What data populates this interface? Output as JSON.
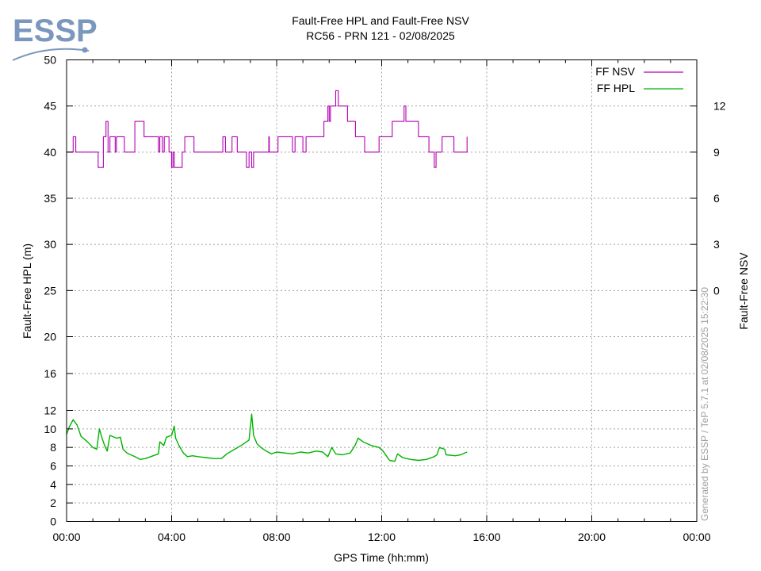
{
  "logo": {
    "text": "ESSP",
    "color": "#7b97bd"
  },
  "colors": {
    "nsv": "#b300b3",
    "hpl": "#00b300",
    "grid": "#a0a0a0",
    "watermark": "#a0a0a0"
  },
  "watermark": "Generated by ESSP / TeP 5.7.1 at 02/08/2025 15:22:30",
  "chart_data": {
    "type": "line",
    "title": "Fault-Free HPL and Fault-Free NSV",
    "subtitle": "RC56 - PRN 121 - 02/08/2025",
    "xlabel": "GPS Time (hh:mm)",
    "ylabel": "Fault-Free HPL (m)",
    "y2label": "Fault-Free NSV",
    "xlim": [
      0,
      24
    ],
    "x_ticks": [
      "00:00",
      "04:00",
      "08:00",
      "12:00",
      "16:00",
      "20:00",
      "00:00"
    ],
    "y_axis_scale": "piecewise",
    "y_ticks": [
      0,
      2,
      4,
      6,
      8,
      10,
      12,
      16,
      20,
      25,
      30,
      35,
      40,
      45,
      50
    ],
    "y2_ticks": [
      0,
      3,
      6,
      9,
      12
    ],
    "y2_map": {
      "nsv_0_at_hpl": 25,
      "hpl_per_nsv": 1.6667
    },
    "grid": true,
    "legend_position": "top-right",
    "series": [
      {
        "name": "FF NSV",
        "axis": "right",
        "step": true,
        "points": [
          [
            0,
            9
          ],
          [
            0.25,
            10
          ],
          [
            0.35,
            9
          ],
          [
            1.2,
            8
          ],
          [
            1.4,
            10
          ],
          [
            1.5,
            11
          ],
          [
            1.58,
            9
          ],
          [
            1.65,
            10
          ],
          [
            1.85,
            9
          ],
          [
            1.9,
            10
          ],
          [
            2.05,
            10
          ],
          [
            2.2,
            9
          ],
          [
            2.6,
            10
          ],
          [
            2.6,
            9
          ],
          [
            2.6,
            10
          ],
          [
            2.6,
            10
          ],
          [
            2.6,
            10
          ],
          [
            2.6,
            10
          ],
          [
            2.6,
            10
          ],
          [
            2.6,
            10
          ],
          [
            2.6,
            10
          ],
          [
            2.6,
            10
          ],
          [
            2.6,
            10
          ],
          [
            2.6,
            10
          ],
          [
            2.6,
            10
          ],
          [
            2.6,
            10
          ],
          [
            2.6,
            10
          ],
          [
            2.6,
            10
          ],
          [
            2.6,
            10
          ],
          [
            2.6,
            11
          ],
          [
            2.95,
            10
          ],
          [
            3.5,
            9
          ],
          [
            3.55,
            10
          ],
          [
            3.65,
            9
          ],
          [
            3.72,
            10
          ],
          [
            3.75,
            10
          ],
          [
            3.8,
            10
          ],
          [
            3.85,
            10
          ],
          [
            3.9,
            9
          ],
          [
            4.0,
            8
          ],
          [
            4.05,
            9
          ],
          [
            4.1,
            8
          ],
          [
            4.4,
            9
          ],
          [
            4.5,
            10
          ],
          [
            4.85,
            9
          ],
          [
            5.95,
            10
          ],
          [
            6.05,
            9
          ],
          [
            6.3,
            10
          ],
          [
            6.5,
            9
          ],
          [
            6.85,
            8
          ],
          [
            6.95,
            9
          ],
          [
            7.05,
            8
          ],
          [
            7.12,
            9
          ],
          [
            7.55,
            9
          ],
          [
            7.7,
            10
          ],
          [
            7.72,
            9
          ],
          [
            8.05,
            10
          ],
          [
            8.6,
            9
          ],
          [
            8.7,
            10
          ],
          [
            8.8,
            10
          ],
          [
            9.0,
            9
          ],
          [
            9.12,
            10
          ],
          [
            9.6,
            10
          ],
          [
            9.8,
            11
          ],
          [
            9.95,
            12
          ],
          [
            10.0,
            11
          ],
          [
            10.05,
            12
          ],
          [
            10.25,
            13
          ],
          [
            10.35,
            12
          ],
          [
            10.7,
            11
          ],
          [
            11.0,
            10
          ],
          [
            11.35,
            9
          ],
          [
            11.85,
            9
          ],
          [
            11.9,
            10
          ],
          [
            12.4,
            11
          ],
          [
            12.85,
            12
          ],
          [
            12.92,
            11
          ],
          [
            13.4,
            10
          ],
          [
            13.8,
            9
          ],
          [
            14.0,
            8
          ],
          [
            14.07,
            9
          ],
          [
            14.3,
            10
          ],
          [
            14.75,
            9
          ],
          [
            15.25,
            10
          ]
        ]
      },
      {
        "name": "FF HPL",
        "axis": "left",
        "points": [
          [
            0,
            9.4
          ],
          [
            0.1,
            10.2
          ],
          [
            0.25,
            11.0
          ],
          [
            0.4,
            10.4
          ],
          [
            0.55,
            9.2
          ],
          [
            0.8,
            8.6
          ],
          [
            1.0,
            8.0
          ],
          [
            1.15,
            7.8
          ],
          [
            1.25,
            10.0
          ],
          [
            1.35,
            9.0
          ],
          [
            1.45,
            8.2
          ],
          [
            1.55,
            7.6
          ],
          [
            1.65,
            9.3
          ],
          [
            1.9,
            9.0
          ],
          [
            2.05,
            9.1
          ],
          [
            2.15,
            7.8
          ],
          [
            2.3,
            7.4
          ],
          [
            2.6,
            7.0
          ],
          [
            2.8,
            6.7
          ],
          [
            3.0,
            6.8
          ],
          [
            3.3,
            7.1
          ],
          [
            3.5,
            7.3
          ],
          [
            3.55,
            8.6
          ],
          [
            3.7,
            8.2
          ],
          [
            3.8,
            9.1
          ],
          [
            4.0,
            9.3
          ],
          [
            4.1,
            10.3
          ],
          [
            4.15,
            9.0
          ],
          [
            4.3,
            8.1
          ],
          [
            4.45,
            7.4
          ],
          [
            4.6,
            7.0
          ],
          [
            4.8,
            7.1
          ],
          [
            5.0,
            7.0
          ],
          [
            5.3,
            6.9
          ],
          [
            5.6,
            6.8
          ],
          [
            5.9,
            6.8
          ],
          [
            6.1,
            7.3
          ],
          [
            6.4,
            7.8
          ],
          [
            6.7,
            8.3
          ],
          [
            6.95,
            8.8
          ],
          [
            7.05,
            11.6
          ],
          [
            7.12,
            9.3
          ],
          [
            7.25,
            8.4
          ],
          [
            7.4,
            8.0
          ],
          [
            7.6,
            7.6
          ],
          [
            7.8,
            7.3
          ],
          [
            8.0,
            7.5
          ],
          [
            8.3,
            7.4
          ],
          [
            8.6,
            7.3
          ],
          [
            8.9,
            7.5
          ],
          [
            9.2,
            7.4
          ],
          [
            9.5,
            7.6
          ],
          [
            9.75,
            7.5
          ],
          [
            9.95,
            7.0
          ],
          [
            10.1,
            8.0
          ],
          [
            10.25,
            7.3
          ],
          [
            10.5,
            7.2
          ],
          [
            10.8,
            7.4
          ],
          [
            11.0,
            8.3
          ],
          [
            11.1,
            9.0
          ],
          [
            11.3,
            8.6
          ],
          [
            11.6,
            8.2
          ],
          [
            11.9,
            8.0
          ],
          [
            12.05,
            7.6
          ],
          [
            12.2,
            7.0
          ],
          [
            12.3,
            6.6
          ],
          [
            12.5,
            6.5
          ],
          [
            12.6,
            7.3
          ],
          [
            12.8,
            6.9
          ],
          [
            13.1,
            6.7
          ],
          [
            13.4,
            6.6
          ],
          [
            13.7,
            6.7
          ],
          [
            14.0,
            7.0
          ],
          [
            14.1,
            7.2
          ],
          [
            14.2,
            8.0
          ],
          [
            14.4,
            7.8
          ],
          [
            14.45,
            7.2
          ],
          [
            14.8,
            7.1
          ],
          [
            15.0,
            7.2
          ],
          [
            15.25,
            7.5
          ]
        ]
      }
    ]
  }
}
